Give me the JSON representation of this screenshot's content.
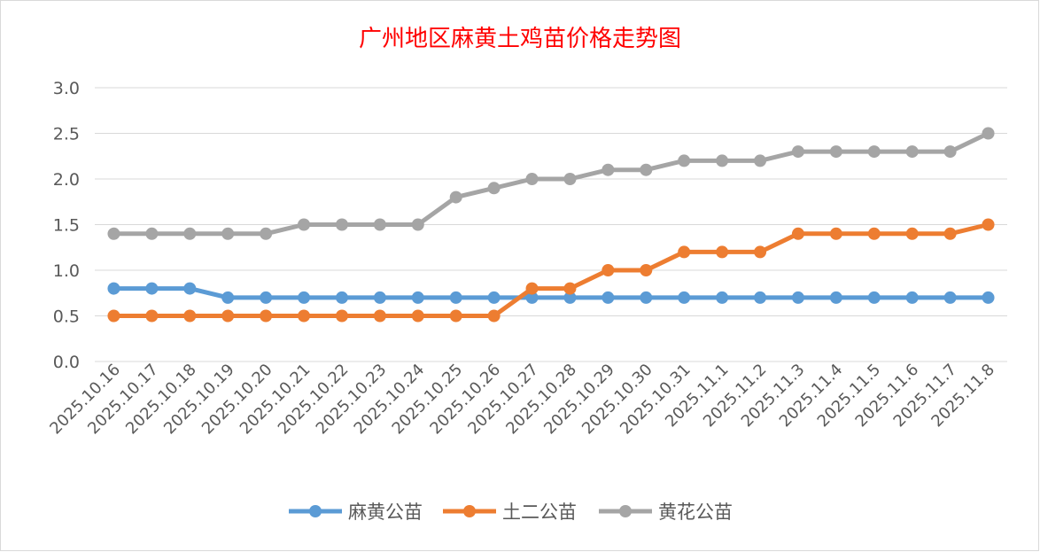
{
  "chart_data": {
    "type": "line",
    "title": "广州地区麻黄土鸡苗价格走势图",
    "xlabel": "",
    "ylabel": "",
    "ylim": [
      0,
      3.0
    ],
    "yticks": [
      "0.0",
      "0.5",
      "1.0",
      "1.5",
      "2.0",
      "2.5",
      "3.0"
    ],
    "grid": true,
    "legend_position": "bottom",
    "categories": [
      "2025.10.16",
      "2025.10.17",
      "2025.10.18",
      "2025.10.19",
      "2025.10.20",
      "2025.10.21",
      "2025.10.22",
      "2025.10.23",
      "2025.10.24",
      "2025.10.25",
      "2025.10.26",
      "2025.10.27",
      "2025.10.28",
      "2025.10.29",
      "2025.10.30",
      "2025.10.31",
      "2025.11.1",
      "2025.11.2",
      "2025.11.3",
      "2025.11.4",
      "2025.11.5",
      "2025.11.6",
      "2025.11.7",
      "2025.11.8"
    ],
    "series": [
      {
        "name": "麻黄公苗",
        "color": "#5B9BD5",
        "values": [
          0.8,
          0.8,
          0.8,
          0.7,
          0.7,
          0.7,
          0.7,
          0.7,
          0.7,
          0.7,
          0.7,
          0.7,
          0.7,
          0.7,
          0.7,
          0.7,
          0.7,
          0.7,
          0.7,
          0.7,
          0.7,
          0.7,
          0.7,
          0.7
        ]
      },
      {
        "name": "土二公苗",
        "color": "#ED7D31",
        "values": [
          0.5,
          0.5,
          0.5,
          0.5,
          0.5,
          0.5,
          0.5,
          0.5,
          0.5,
          0.5,
          0.5,
          0.8,
          0.8,
          1.0,
          1.0,
          1.2,
          1.2,
          1.2,
          1.4,
          1.4,
          1.4,
          1.4,
          1.4,
          1.5
        ]
      },
      {
        "name": "黄花公苗",
        "color": "#A5A5A5",
        "values": [
          1.4,
          1.4,
          1.4,
          1.4,
          1.4,
          1.5,
          1.5,
          1.5,
          1.5,
          1.8,
          1.9,
          2.0,
          2.0,
          2.1,
          2.1,
          2.2,
          2.2,
          2.2,
          2.3,
          2.3,
          2.3,
          2.3,
          2.3,
          2.5
        ]
      }
    ]
  },
  "colors": {
    "title": "#FF0000",
    "grid": "#D9D9D9",
    "tick_text": "#595959"
  }
}
